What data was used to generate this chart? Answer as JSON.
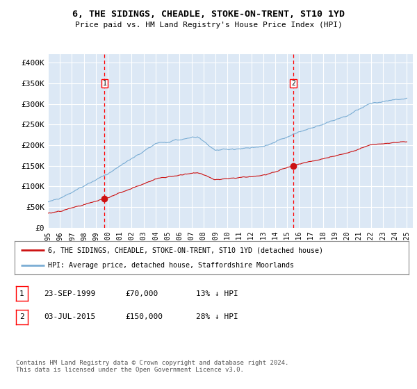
{
  "title": "6, THE SIDINGS, CHEADLE, STOKE-ON-TRENT, ST10 1YD",
  "subtitle": "Price paid vs. HM Land Registry's House Price Index (HPI)",
  "ylim": [
    0,
    420000
  ],
  "yticks": [
    0,
    50000,
    100000,
    150000,
    200000,
    250000,
    300000,
    350000,
    400000
  ],
  "ytick_labels": [
    "£0",
    "£50K",
    "£100K",
    "£150K",
    "£200K",
    "£250K",
    "£300K",
    "£350K",
    "£400K"
  ],
  "bg_color": "#dce8f5",
  "grid_color": "#ffffff",
  "hpi_color": "#7aadd4",
  "red_color": "#cc1111",
  "sale1_x": 1999.73,
  "sale1_price": 70000,
  "sale2_x": 2015.5,
  "sale2_price": 150000,
  "legend_line1": "6, THE SIDINGS, CHEADLE, STOKE-ON-TRENT, ST10 1YD (detached house)",
  "legend_line2": "HPI: Average price, detached house, Staffordshire Moorlands",
  "table_rows": [
    [
      "1",
      "23-SEP-1999",
      "£70,000",
      "13% ↓ HPI"
    ],
    [
      "2",
      "03-JUL-2015",
      "£150,000",
      "28% ↓ HPI"
    ]
  ],
  "footnote": "Contains HM Land Registry data © Crown copyright and database right 2024.\nThis data is licensed under the Open Government Licence v3.0."
}
